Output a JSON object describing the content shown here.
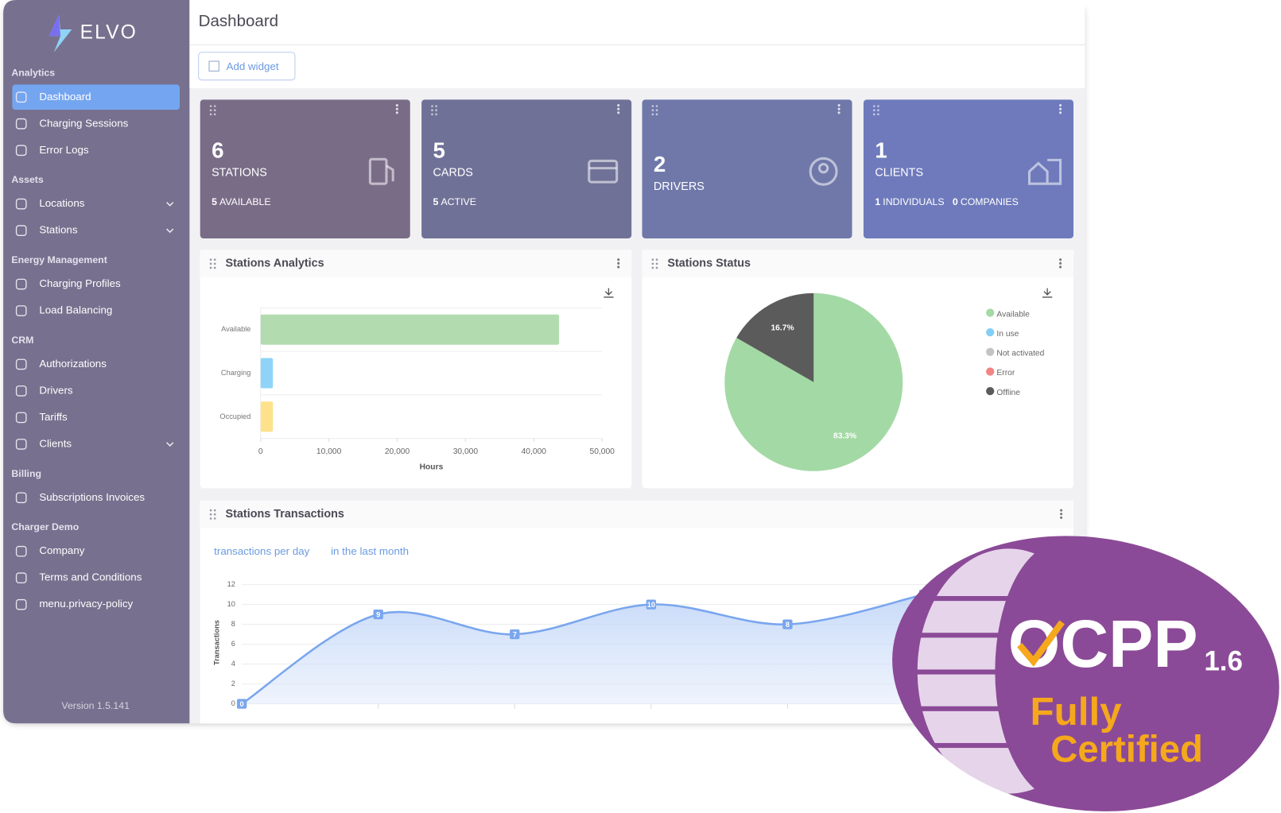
{
  "brand": "ELVO",
  "sidebar": {
    "sections": [
      {
        "title": "Analytics",
        "items": [
          {
            "label": "Dashboard",
            "active": true
          },
          {
            "label": "Charging Sessions"
          },
          {
            "label": "Error Logs"
          }
        ]
      },
      {
        "title": "Assets",
        "items": [
          {
            "label": "Locations",
            "expandable": true
          },
          {
            "label": "Stations",
            "expandable": true
          }
        ]
      },
      {
        "title": "Energy Management",
        "items": [
          {
            "label": "Charging Profiles"
          },
          {
            "label": "Load Balancing"
          }
        ]
      },
      {
        "title": "CRM",
        "items": [
          {
            "label": "Authorizations"
          },
          {
            "label": "Drivers"
          },
          {
            "label": "Tariffs"
          },
          {
            "label": "Clients",
            "expandable": true
          }
        ]
      },
      {
        "title": "Billing",
        "items": [
          {
            "label": "Subscriptions Invoices"
          }
        ]
      },
      {
        "title": "Charger Demo",
        "items": [
          {
            "label": "Company"
          },
          {
            "label": "Terms and Conditions"
          },
          {
            "label": "menu.privacy-policy"
          }
        ]
      }
    ],
    "version": "Version 1.5.141"
  },
  "header": {
    "title": "Dashboard",
    "add_widget": "Add widget"
  },
  "cards": [
    {
      "value": 6,
      "label": "STATIONS",
      "details": [
        {
          "value": 5,
          "label": "AVAILABLE"
        }
      ],
      "color": "#796c87"
    },
    {
      "value": 5,
      "label": "CARDS",
      "details": [
        {
          "value": 5,
          "label": "ACTIVE"
        }
      ],
      "color": "#707197"
    },
    {
      "value": 2,
      "label": "DRIVERS",
      "details": [],
      "color": "#6f78a9"
    },
    {
      "value": 1,
      "label": "CLIENTS",
      "details": [
        {
          "value": 1,
          "label": "INDIVIDUALS"
        },
        {
          "value": 0,
          "label": "COMPANIES"
        }
      ],
      "color": "#6e7abb"
    }
  ],
  "widgets": {
    "analytics": {
      "title": "Stations Analytics",
      "chart_data": {
        "type": "bar",
        "orientation": "horizontal",
        "categories": [
          "Available",
          "Charging",
          "Occupied"
        ],
        "values": [
          43700,
          1800,
          1800
        ],
        "colors": [
          "#b2dbb0",
          "#8fd4f8",
          "#fde28b"
        ],
        "xlim": [
          0,
          50000
        ],
        "xticks": [
          0,
          {
            "value": 10000,
            "label": "10,000"
          },
          {
            "value": 20000,
            "label": "20,000"
          },
          {
            "value": 30000,
            "label": "30,000"
          },
          {
            "value": 40000,
            "label": "40,000"
          },
          {
            "value": 50000,
            "label": "50,000"
          }
        ],
        "xlabel": "Hours"
      }
    },
    "status": {
      "title": "Stations Status",
      "chart_data": {
        "type": "pie",
        "categories": [
          "Available",
          "In use",
          "Not activated",
          "Error",
          "Offline"
        ],
        "values": [
          83.3,
          0,
          0,
          0,
          16.7
        ],
        "value_labels": [
          "83.3%",
          null,
          null,
          null,
          "16.7%"
        ],
        "colors": [
          "#a3d9a5",
          "#81cff5",
          "#c4c4c4",
          "#f28482",
          "#5b5b5b"
        ]
      }
    },
    "transactions": {
      "title": "Stations Transactions",
      "tabs": [
        "transactions per day",
        "in the last month"
      ],
      "chart_data": {
        "type": "line",
        "categories": [
          null,
          null,
          null,
          null,
          null,
          null
        ],
        "values": [
          0,
          9,
          7,
          10,
          8,
          11
        ],
        "ylabel": "Transactions",
        "ylim": [
          0,
          12
        ],
        "yticks": [
          0,
          2,
          4,
          6,
          8,
          10,
          12
        ],
        "color": "#7aa6ee",
        "grid": true
      }
    }
  },
  "badge": {
    "name": "OCPP",
    "version": "1.6",
    "line1": "Fully",
    "line2": "Certified"
  }
}
